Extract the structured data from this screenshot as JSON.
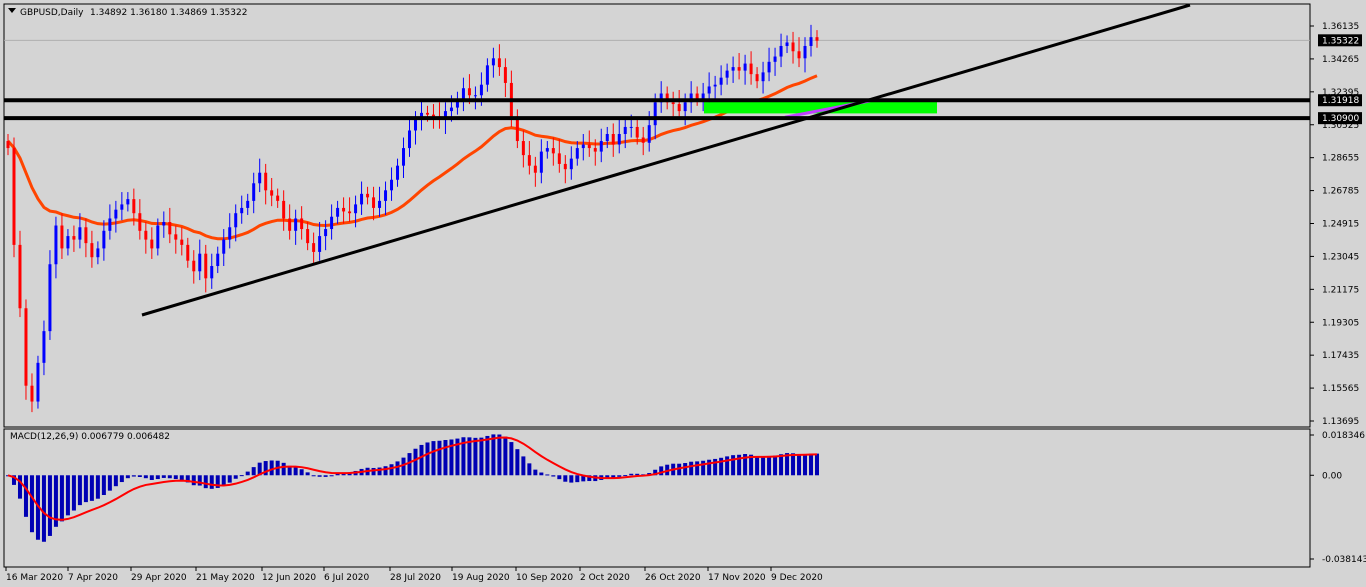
{
  "chart_data": [
    {
      "type": "candlestick",
      "symbol_label": "GBPUSD,Daily",
      "ohlc_label": "1.34892 1.36180 1.34869 1.35322",
      "current_price": 1.35322,
      "ylim": [
        1.13695,
        1.36135
      ],
      "y_ticks": [
        "1.36135",
        "1.34265",
        "1.32395",
        "1.30525",
        "1.28655",
        "1.26785",
        "1.24915",
        "1.23045",
        "1.21175",
        "1.19305",
        "1.17435",
        "1.15565",
        "1.13695"
      ],
      "x_ticks": [
        "16 Mar 2020",
        "7 Apr 2020",
        "29 Apr 2020",
        "21 May 2020",
        "12 Jun 2020",
        "6 Jul 2020",
        "28 Jul 2020",
        "19 Aug 2020",
        "10 Sep 2020",
        "2 Oct 2020",
        "26 Oct 2020",
        "17 Nov 2020",
        "9 Dec 2020"
      ],
      "price_labels": [
        "1.35322",
        "1.31918",
        "1.30900"
      ],
      "horizontal_levels": [
        1.31918,
        1.309
      ],
      "colors": {
        "bull": "#0000ff",
        "bear": "#ff0000",
        "ma": "#ff4500",
        "trendline": "#000000",
        "zone": "#00ff00",
        "zone_ma": "#c040ff"
      },
      "closes": [
        1.292,
        1.237,
        1.201,
        1.157,
        1.148,
        1.17,
        1.188,
        1.226,
        1.248,
        1.235,
        1.242,
        1.24,
        1.247,
        1.238,
        1.23,
        1.235,
        1.245,
        1.252,
        1.257,
        1.26,
        1.263,
        1.255,
        1.245,
        1.24,
        1.235,
        1.248,
        1.25,
        1.243,
        1.24,
        1.237,
        1.228,
        1.222,
        1.232,
        1.218,
        1.225,
        1.232,
        1.24,
        1.247,
        1.255,
        1.258,
        1.262,
        1.272,
        1.278,
        1.268,
        1.265,
        1.262,
        1.252,
        1.245,
        1.252,
        1.246,
        1.238,
        1.233,
        1.242,
        1.246,
        1.253,
        1.258,
        1.256,
        1.255,
        1.26,
        1.266,
        1.264,
        1.258,
        1.262,
        1.268,
        1.274,
        1.282,
        1.292,
        1.302,
        1.308,
        1.312,
        1.311,
        1.31,
        1.308,
        1.313,
        1.315,
        1.32,
        1.326,
        1.322,
        1.322,
        1.328,
        1.339,
        1.343,
        1.338,
        1.329,
        1.31,
        1.296,
        1.288,
        1.282,
        1.278,
        1.29,
        1.292,
        1.289,
        1.283,
        1.28,
        1.286,
        1.292,
        1.294,
        1.292,
        1.29,
        1.296,
        1.3,
        1.294,
        1.3,
        1.304,
        1.304,
        1.298,
        1.295,
        1.305,
        1.318,
        1.323,
        1.318,
        1.317,
        1.313,
        1.318,
        1.323,
        1.32,
        1.323,
        1.327,
        1.328,
        1.332,
        1.336,
        1.338,
        1.336,
        1.34,
        1.334,
        1.33,
        1.335,
        1.341,
        1.344,
        1.35,
        1.352,
        1.347,
        1.343,
        1.35,
        1.355,
        1.353
      ]
    },
    {
      "type": "macd",
      "label": "MACD(12,26,9) 0.006779 0.006482",
      "ylim": [
        -0.038143,
        0.018346
      ],
      "y_ticks": [
        "0.018346",
        "0.00",
        "-0.038143"
      ],
      "colors": {
        "histogram": "#0000b4",
        "signal": "#ff0000"
      }
    }
  ]
}
